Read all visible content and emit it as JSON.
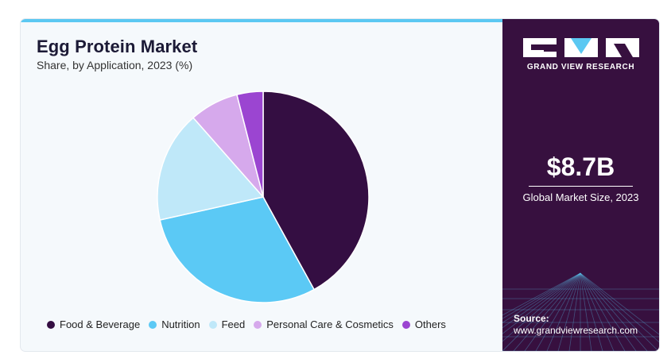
{
  "header": {
    "title": "Egg Protein Market",
    "subtitle": "Share, by Application, 2023 (%)"
  },
  "chart_data": {
    "type": "pie",
    "title": "Egg Protein Market",
    "subtitle": "Share, by Application, 2023 (%)",
    "categories": [
      "Food & Beverage",
      "Nutrition",
      "Feed",
      "Personal Care & Cosmetics",
      "Others"
    ],
    "values": [
      42,
      29.5,
      17,
      7.5,
      4
    ],
    "colors": [
      "#340e42",
      "#5bc9f5",
      "#bfe8f9",
      "#d6a9ec",
      "#9b45d1"
    ],
    "start_angle_deg": 0,
    "direction": "clockwise",
    "legend_position": "bottom"
  },
  "sidebar": {
    "brand": "GRAND VIEW RESEARCH",
    "market_size": "$8.7B",
    "market_size_label": "Global Market Size, 2023",
    "source_label": "Source:",
    "source_url": "www.grandviewresearch.com",
    "background_color": "#37103f"
  }
}
